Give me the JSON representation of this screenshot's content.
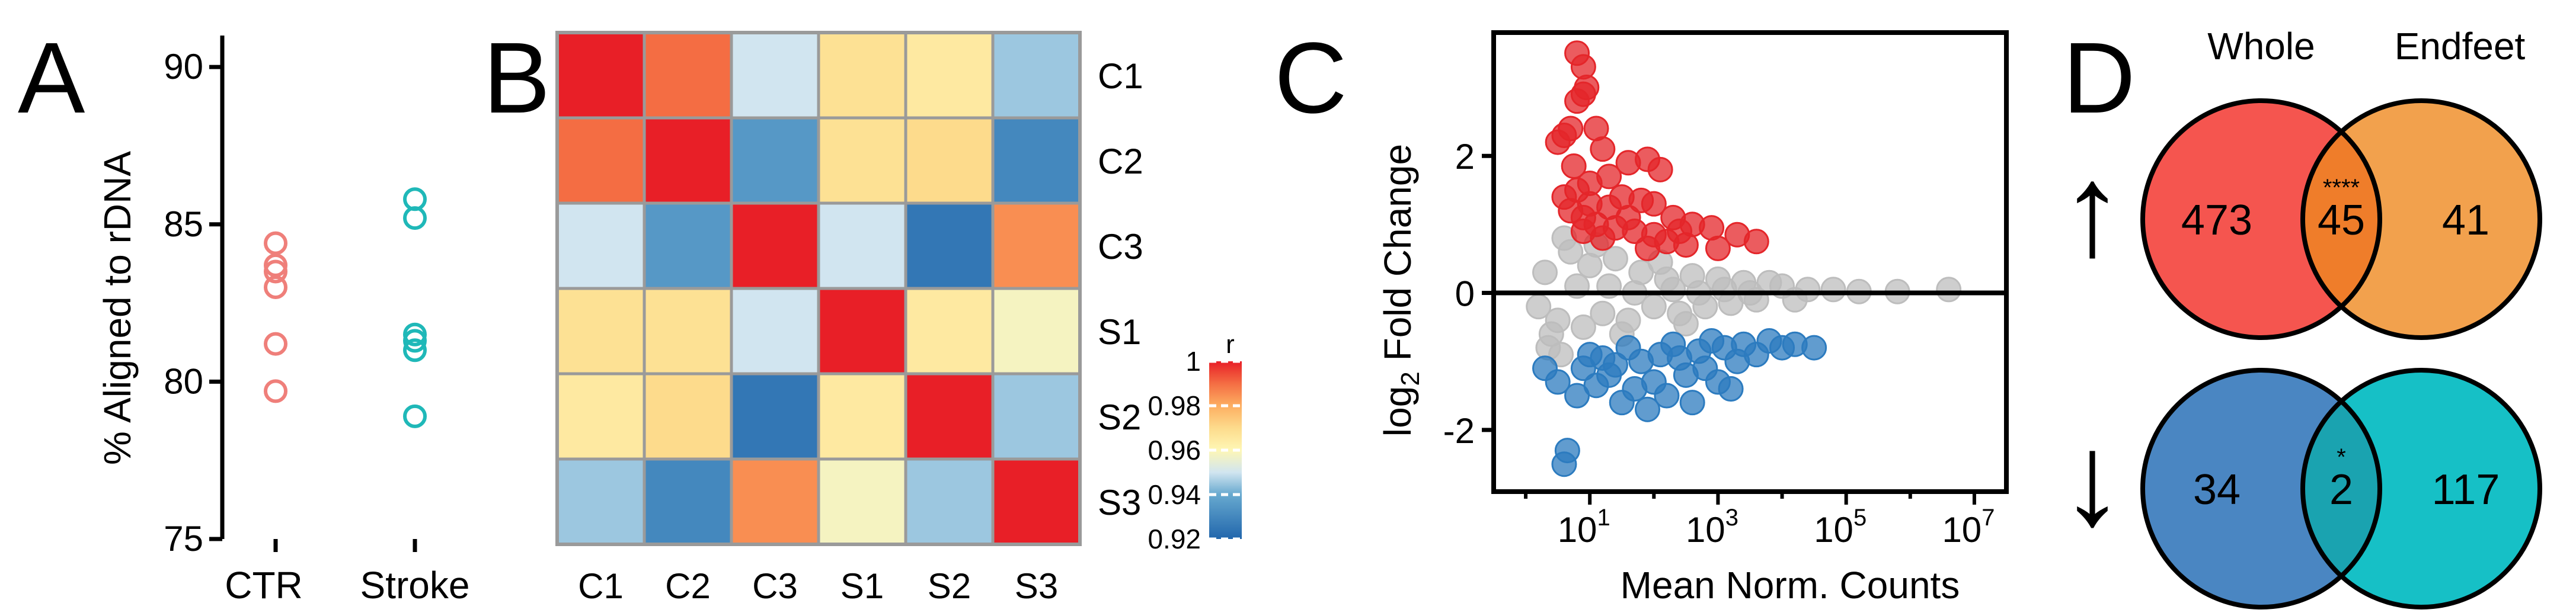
{
  "figure": {
    "panel_letters": [
      "A",
      "B",
      "C",
      "D"
    ]
  },
  "colors": {
    "ctr": "#ef7f7a",
    "stroke": "#1fb8b8",
    "up_red": "#e4262a",
    "down_blue": "#2c7bbf",
    "gray": "#bdbdbd",
    "venn_whole_up": "#f5554f",
    "venn_endfeet_up": "#f2a14d",
    "venn_overlap_up": "#ef7d2a",
    "venn_whole_down": "#4a86c2",
    "venn_endfeet_down": "#16c0c6",
    "venn_overlap_down": "#1aa3b0"
  },
  "chart_data": [
    {
      "panel": "A",
      "type": "scatter",
      "title": "",
      "ylabel": "% Aligned to rDNA",
      "xlabel": "",
      "categories": [
        "CTR",
        "Stroke"
      ],
      "ylim": [
        75,
        91
      ],
      "yticks": [
        75,
        80,
        85,
        90
      ],
      "series": [
        {
          "name": "CTR",
          "values": [
            84.4,
            83.7,
            83.5,
            83.0,
            81.2,
            79.7
          ]
        },
        {
          "name": "Stroke",
          "values": [
            85.8,
            85.2,
            81.5,
            81.3,
            81.0,
            78.9
          ]
        }
      ]
    },
    {
      "panel": "B",
      "type": "heatmap",
      "rows": [
        "C1",
        "C2",
        "C3",
        "S1",
        "S2",
        "S3"
      ],
      "cols": [
        "C1",
        "C2",
        "C3",
        "S1",
        "S2",
        "S3"
      ],
      "values": [
        [
          1.0,
          0.99,
          0.95,
          0.968,
          0.965,
          0.945
        ],
        [
          0.99,
          1.0,
          0.935,
          0.968,
          0.97,
          0.93
        ],
        [
          0.95,
          0.935,
          1.0,
          0.95,
          0.925,
          0.985
        ],
        [
          0.968,
          0.968,
          0.95,
          1.0,
          0.965,
          0.958
        ],
        [
          0.965,
          0.97,
          0.925,
          0.965,
          1.0,
          0.945
        ],
        [
          0.945,
          0.93,
          0.985,
          0.958,
          0.945,
          1.0
        ]
      ],
      "colorbar": {
        "label": "r",
        "ticks": [
          "1",
          "0.98",
          "0.96",
          "0.94",
          "0.92"
        ],
        "range": [
          0.92,
          1.0
        ]
      }
    },
    {
      "panel": "C",
      "type": "scatter",
      "title": "",
      "xlabel": "Mean Norm. Counts",
      "ylabel_main": "log",
      "ylabel_sub": "2",
      "ylabel_rest": " Fold Change",
      "xscale": "log10",
      "xlim_log10": [
        -0.5,
        7.5
      ],
      "xticks": [
        {
          "base": "10",
          "exp": "1"
        },
        {
          "base": "10",
          "exp": "3"
        },
        {
          "base": "10",
          "exp": "5"
        },
        {
          "base": "10",
          "exp": "7"
        }
      ],
      "ylim": [
        -2.9,
        3.8
      ],
      "yticks": [
        "2",
        "0",
        "-2"
      ],
      "ytick_values": [
        2,
        0,
        -2
      ],
      "series": [
        {
          "name": "up",
          "points": [
            [
              0.8,
              3.5
            ],
            [
              0.9,
              3.3
            ],
            [
              0.95,
              3.0
            ],
            [
              0.9,
              2.9
            ],
            [
              0.8,
              2.8
            ],
            [
              0.7,
              2.4
            ],
            [
              0.6,
              2.3
            ],
            [
              0.5,
              2.2
            ],
            [
              1.1,
              2.4
            ],
            [
              1.2,
              2.1
            ],
            [
              1.6,
              1.9
            ],
            [
              1.9,
              1.95
            ],
            [
              2.1,
              1.8
            ],
            [
              1.3,
              1.7
            ],
            [
              1.0,
              1.6
            ],
            [
              0.8,
              1.5
            ],
            [
              0.6,
              1.4
            ],
            [
              1.5,
              1.4
            ],
            [
              1.8,
              1.35
            ],
            [
              2.0,
              1.3
            ],
            [
              2.3,
              1.1
            ],
            [
              2.6,
              1.0
            ],
            [
              2.9,
              0.95
            ],
            [
              3.3,
              0.85
            ],
            [
              3.6,
              0.75
            ],
            [
              0.7,
              1.2
            ],
            [
              0.9,
              1.1
            ],
            [
              1.1,
              1.0
            ],
            [
              1.4,
              0.95
            ],
            [
              1.7,
              0.9
            ],
            [
              2.0,
              0.85
            ],
            [
              2.2,
              0.75
            ],
            [
              1.2,
              0.8
            ],
            [
              0.9,
              0.9
            ],
            [
              1.6,
              1.1
            ],
            [
              2.5,
              0.7
            ],
            [
              3.0,
              0.65
            ],
            [
              1.3,
              1.25
            ],
            [
              1.9,
              0.65
            ],
            [
              0.75,
              1.85
            ],
            [
              1.0,
              1.3
            ],
            [
              2.4,
              0.9
            ]
          ]
        },
        {
          "name": "down",
          "points": [
            [
              0.3,
              -1.1
            ],
            [
              0.5,
              -1.3
            ],
            [
              0.8,
              -1.5
            ],
            [
              0.65,
              -2.3
            ],
            [
              0.6,
              -2.5
            ],
            [
              1.3,
              -1.2
            ],
            [
              1.5,
              -1.6
            ],
            [
              1.7,
              -1.4
            ],
            [
              2.0,
              -1.3
            ],
            [
              2.2,
              -1.5
            ],
            [
              2.5,
              -1.2
            ],
            [
              2.8,
              -1.1
            ],
            [
              3.0,
              -1.3
            ],
            [
              3.3,
              -1.0
            ],
            [
              3.6,
              -0.9
            ],
            [
              4.0,
              -0.8
            ],
            [
              4.2,
              -0.75
            ],
            [
              4.5,
              -0.8
            ],
            [
              1.0,
              -0.9
            ],
            [
              1.2,
              -0.95
            ],
            [
              1.4,
              -1.05
            ],
            [
              1.8,
              -1.0
            ],
            [
              2.1,
              -0.9
            ],
            [
              2.4,
              -0.95
            ],
            [
              2.7,
              -0.85
            ],
            [
              3.1,
              -0.8
            ],
            [
              3.4,
              -0.75
            ],
            [
              3.8,
              -0.7
            ],
            [
              1.6,
              -0.8
            ],
            [
              2.3,
              -0.75
            ],
            [
              2.9,
              -0.7
            ],
            [
              0.9,
              -1.1
            ],
            [
              1.9,
              -1.7
            ],
            [
              2.6,
              -1.6
            ],
            [
              3.2,
              -1.4
            ],
            [
              1.1,
              -1.35
            ]
          ]
        },
        {
          "name": "not_significant",
          "points": [
            [
              0.3,
              0.3
            ],
            [
              0.5,
              -0.4
            ],
            [
              0.7,
              0.6
            ],
            [
              0.9,
              -0.5
            ],
            [
              1.0,
              0.4
            ],
            [
              1.2,
              -0.3
            ],
            [
              1.4,
              0.5
            ],
            [
              1.6,
              -0.4
            ],
            [
              1.8,
              0.3
            ],
            [
              2.0,
              -0.2
            ],
            [
              2.2,
              0.2
            ],
            [
              2.4,
              -0.3
            ],
            [
              2.6,
              0.25
            ],
            [
              2.8,
              -0.2
            ],
            [
              3.0,
              0.2
            ],
            [
              3.2,
              -0.15
            ],
            [
              3.4,
              0.15
            ],
            [
              3.6,
              -0.1
            ],
            [
              3.8,
              0.15
            ],
            [
              4.0,
              0.1
            ],
            [
              4.2,
              -0.1
            ],
            [
              0.4,
              -0.6
            ],
            [
              0.6,
              0.8
            ],
            [
              1.1,
              0.7
            ],
            [
              1.5,
              -0.6
            ],
            [
              2.1,
              0.45
            ],
            [
              2.5,
              -0.45
            ],
            [
              0.8,
              0.1
            ],
            [
              1.3,
              0.1
            ],
            [
              1.7,
              0.0
            ],
            [
              2.3,
              0.05
            ],
            [
              2.7,
              0.0
            ],
            [
              3.1,
              0.05
            ],
            [
              3.5,
              0.0
            ],
            [
              4.4,
              0.05
            ],
            [
              0.2,
              -0.2
            ],
            [
              4.8,
              0.05
            ],
            [
              5.2,
              0.02
            ],
            [
              5.8,
              0.02
            ],
            [
              6.6,
              0.05
            ],
            [
              0.35,
              -0.8
            ],
            [
              0.55,
              -0.9
            ]
          ]
        }
      ]
    },
    {
      "panel": "D",
      "type": "venn",
      "set_labels": [
        "Whole",
        "Endfeet"
      ],
      "rows": [
        {
          "direction": "up",
          "arrow": "↑",
          "only_a": "473",
          "both": "45",
          "only_b": "41",
          "significance": "****"
        },
        {
          "direction": "down",
          "arrow": "↓",
          "only_a": "34",
          "both": "2",
          "only_b": "117",
          "significance": "*"
        }
      ]
    }
  ]
}
